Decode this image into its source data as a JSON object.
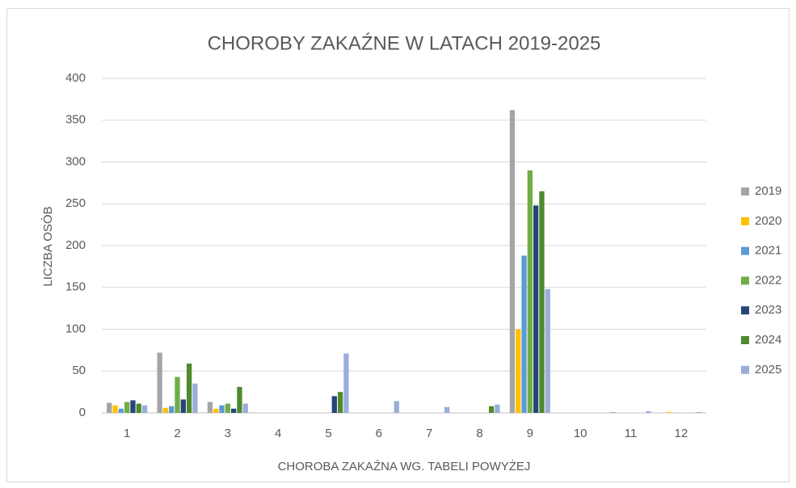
{
  "chart_data": {
    "type": "bar",
    "title": "CHOROBY ZAKAŹNE W LATACH 2019-2025",
    "x_label": "CHOROBA ZAKAŹNA WG. TABELI POWYŻEJ",
    "y_label": "LICZBA OSÓB",
    "categories": [
      "1",
      "2",
      "3",
      "4",
      "5",
      "6",
      "7",
      "8",
      "9",
      "10",
      "11",
      "12"
    ],
    "series": [
      {
        "name": "2019",
        "color": "#a5a5a5",
        "values": [
          12,
          72,
          13,
          0,
          0,
          0,
          0,
          0,
          362,
          0,
          1,
          0
        ]
      },
      {
        "name": "2020",
        "color": "#ffc000",
        "values": [
          9,
          6,
          5,
          0,
          0,
          0,
          0,
          0,
          100,
          0,
          0,
          1
        ]
      },
      {
        "name": "2021",
        "color": "#5b9bd5",
        "values": [
          5,
          8,
          9,
          0,
          0,
          0,
          0,
          0,
          188,
          0,
          0,
          0
        ]
      },
      {
        "name": "2022",
        "color": "#70ad47",
        "values": [
          13,
          43,
          11,
          0,
          0,
          0,
          0,
          0,
          290,
          0,
          0,
          0
        ]
      },
      {
        "name": "2023",
        "color": "#264478",
        "values": [
          15,
          16,
          5,
          0,
          20,
          0,
          0,
          0,
          248,
          0,
          0,
          0
        ]
      },
      {
        "name": "2024",
        "color": "#4e8a2e",
        "values": [
          11,
          59,
          31,
          0,
          25,
          0,
          0,
          8,
          265,
          0,
          0,
          0
        ]
      },
      {
        "name": "2025",
        "color": "#9aadd9",
        "values": [
          9,
          35,
          11,
          0,
          71,
          14,
          7,
          10,
          148,
          0,
          2,
          1
        ]
      }
    ],
    "ylim": [
      0,
      400
    ],
    "yticks": [
      0,
      50,
      100,
      150,
      200,
      250,
      300,
      350,
      400
    ],
    "grid": true,
    "legend": "right"
  }
}
